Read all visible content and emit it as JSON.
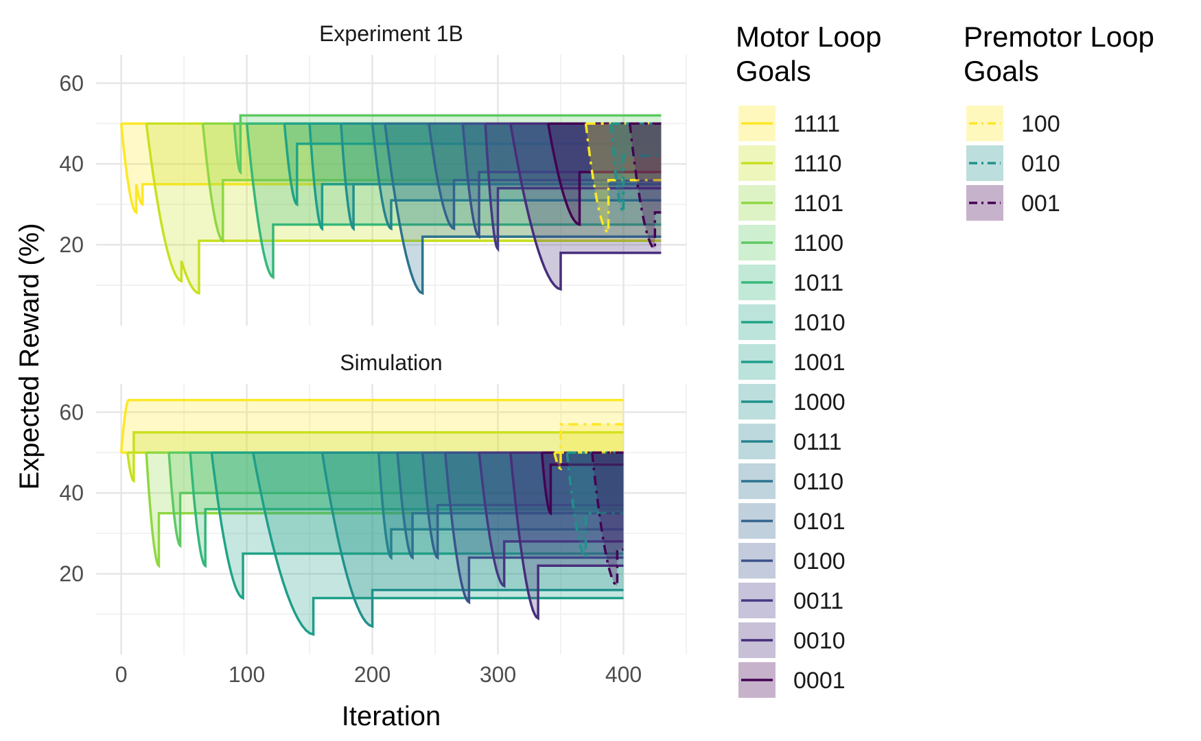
{
  "chart_data": {
    "type": "line",
    "ylabel": "Expected Reward (%)",
    "xlabel": "Iteration",
    "grid": true,
    "legend_placement": "right",
    "x_ticks": [
      0,
      100,
      200,
      300,
      400
    ],
    "y_ticks": [
      20,
      40,
      60
    ],
    "panels": [
      {
        "title": "Experiment 1B",
        "xlim": [
          -20,
          450
        ],
        "ylim": [
          0,
          67
        ],
        "motor_series": [
          {
            "goal": "1111",
            "base": 50,
            "start": 0,
            "end": 430,
            "drops": [
              [
                0,
                50
              ],
              [
                12,
                28,
                35
              ],
              [
                17,
                30,
                35
              ],
              [
                25,
                35,
                35
              ]
            ]
          },
          {
            "goal": "1110",
            "base": 50,
            "start": 20,
            "end": 430,
            "drops": [
              [
                20,
                50
              ],
              [
                48,
                11,
                16
              ],
              [
                62,
                8,
                21
              ]
            ]
          },
          {
            "goal": "1101",
            "base": 50,
            "start": 65,
            "end": 430,
            "drops": [
              [
                65,
                50
              ],
              [
                81,
                21,
                36
              ],
              [
                86,
                36,
                36
              ]
            ]
          },
          {
            "goal": "1100",
            "base": 50,
            "start": 90,
            "end": 430,
            "drops": [
              [
                90,
                50
              ],
              [
                95,
                38,
                52
              ]
            ]
          },
          {
            "goal": "1011",
            "base": 50,
            "start": 100,
            "end": 430,
            "drops": [
              [
                100,
                50
              ],
              [
                121,
                12,
                25
              ]
            ]
          },
          {
            "goal": "1010",
            "base": 50,
            "start": 130,
            "end": 430,
            "drops": [
              [
                130,
                50
              ],
              [
                140,
                30,
                45
              ]
            ]
          },
          {
            "goal": "1001",
            "base": 50,
            "start": 150,
            "end": 430,
            "drops": [
              [
                150,
                50
              ],
              [
                160,
                24,
                35
              ]
            ]
          },
          {
            "goal": "1000",
            "base": 50,
            "start": 175,
            "end": 430,
            "drops": [
              [
                175,
                50
              ],
              [
                185,
                24,
                35
              ]
            ]
          },
          {
            "goal": "0111",
            "base": 50,
            "start": 200,
            "end": 430,
            "drops": [
              [
                200,
                50
              ],
              [
                215,
                24,
                31
              ]
            ]
          },
          {
            "goal": "0110",
            "base": 50,
            "start": 210,
            "end": 430,
            "drops": [
              [
                210,
                50
              ],
              [
                240,
                8,
                22
              ]
            ]
          },
          {
            "goal": "0101",
            "base": 50,
            "start": 245,
            "end": 430,
            "drops": [
              [
                245,
                50
              ],
              [
                265,
                24,
                36
              ]
            ]
          },
          {
            "goal": "0100",
            "base": 50,
            "start": 272,
            "end": 430,
            "drops": [
              [
                272,
                50
              ],
              [
                285,
                22,
                38
              ]
            ]
          },
          {
            "goal": "0011",
            "base": 50,
            "start": 290,
            "end": 430,
            "drops": [
              [
                290,
                50
              ],
              [
                300,
                19,
                34
              ]
            ]
          },
          {
            "goal": "0010",
            "base": 50,
            "start": 310,
            "end": 430,
            "drops": [
              [
                310,
                50
              ],
              [
                350,
                9,
                18
              ]
            ]
          },
          {
            "goal": "0001",
            "base": 50,
            "start": 340,
            "end": 430,
            "drops": [
              [
                340,
                50
              ],
              [
                365,
                25,
                38
              ]
            ]
          }
        ],
        "premotor_series": [
          {
            "goal": "100",
            "base": 50,
            "start": 370,
            "end": 430,
            "drops": [
              [
                370,
                50
              ],
              [
                388,
                23,
                36
              ]
            ]
          },
          {
            "goal": "010",
            "base": 50,
            "start": 390,
            "end": 430,
            "drops": [
              [
                390,
                50
              ],
              [
                400,
                28,
                42
              ]
            ]
          },
          {
            "goal": "001",
            "base": 50,
            "start": 405,
            "end": 430,
            "drops": [
              [
                405,
                50
              ],
              [
                425,
                19,
                28
              ]
            ]
          }
        ]
      },
      {
        "title": "Simulation",
        "xlim": [
          -20,
          450
        ],
        "ylim": [
          0,
          67
        ],
        "motor_series": [
          {
            "goal": "1111",
            "base": 50,
            "start": 0,
            "end": 400,
            "drops": [
              [
                0,
                50
              ],
              [
                6,
                63,
                63
              ]
            ]
          },
          {
            "goal": "1110",
            "base": 50,
            "start": 5,
            "end": 400,
            "drops": [
              [
                5,
                50
              ],
              [
                10,
                43,
                55
              ]
            ]
          },
          {
            "goal": "1101",
            "base": 50,
            "start": 20,
            "end": 400,
            "drops": [
              [
                20,
                50
              ],
              [
                30,
                22,
                35
              ]
            ]
          },
          {
            "goal": "1100",
            "base": 50,
            "start": 38,
            "end": 400,
            "drops": [
              [
                38,
                50
              ],
              [
                47,
                27,
                40
              ]
            ]
          },
          {
            "goal": "1011",
            "base": 50,
            "start": 55,
            "end": 400,
            "drops": [
              [
                55,
                50
              ],
              [
                67,
                22,
                36
              ]
            ]
          },
          {
            "goal": "1010",
            "base": 50,
            "start": 72,
            "end": 400,
            "drops": [
              [
                72,
                50
              ],
              [
                97,
                14,
                25
              ]
            ]
          },
          {
            "goal": "1001",
            "base": 50,
            "start": 105,
            "end": 400,
            "drops": [
              [
                105,
                50
              ],
              [
                153,
                5,
                14
              ]
            ]
          },
          {
            "goal": "1000",
            "base": 50,
            "start": 160,
            "end": 400,
            "drops": [
              [
                160,
                50
              ],
              [
                200,
                7,
                16
              ]
            ]
          },
          {
            "goal": "0111",
            "base": 50,
            "start": 205,
            "end": 400,
            "drops": [
              [
                205,
                50
              ],
              [
                215,
                24,
                31
              ]
            ]
          },
          {
            "goal": "0110",
            "base": 50,
            "start": 220,
            "end": 400,
            "drops": [
              [
                220,
                50
              ],
              [
                232,
                24,
                35
              ]
            ]
          },
          {
            "goal": "0101",
            "base": 50,
            "start": 240,
            "end": 400,
            "drops": [
              [
                240,
                50
              ],
              [
                252,
                24,
                37
              ]
            ]
          },
          {
            "goal": "0100",
            "base": 50,
            "start": 258,
            "end": 400,
            "drops": [
              [
                258,
                50
              ],
              [
                277,
                13,
                24
              ]
            ]
          },
          {
            "goal": "0011",
            "base": 50,
            "start": 285,
            "end": 400,
            "drops": [
              [
                285,
                50
              ],
              [
                305,
                17,
                28
              ]
            ]
          },
          {
            "goal": "0010",
            "base": 50,
            "start": 310,
            "end": 400,
            "drops": [
              [
                310,
                50
              ],
              [
                332,
                9,
                22
              ]
            ]
          },
          {
            "goal": "0001",
            "base": 50,
            "start": 335,
            "end": 400,
            "drops": [
              [
                335,
                50
              ],
              [
                342,
                35,
                47
              ]
            ]
          }
        ],
        "premotor_series": [
          {
            "goal": "100",
            "base": 50,
            "start": 345,
            "end": 400,
            "drops": [
              [
                345,
                50
              ],
              [
                350,
                46,
                57
              ]
            ]
          },
          {
            "goal": "010",
            "base": 50,
            "start": 355,
            "end": 400,
            "drops": [
              [
                355,
                50
              ],
              [
                370,
                24,
                35
              ]
            ]
          },
          {
            "goal": "001",
            "base": 50,
            "start": 375,
            "end": 400,
            "drops": [
              [
                375,
                50
              ],
              [
                395,
                17,
                26
              ]
            ]
          }
        ]
      }
    ]
  },
  "legend": {
    "motor_title_line1": "Motor Loop",
    "motor_title_line2": "Goals",
    "motor_items": [
      {
        "label": "1111",
        "color": "#FDE725"
      },
      {
        "label": "1110",
        "color": "#C8E020"
      },
      {
        "label": "1101",
        "color": "#90D743"
      },
      {
        "label": "1100",
        "color": "#5EC962"
      },
      {
        "label": "1011",
        "color": "#35B779"
      },
      {
        "label": "1010",
        "color": "#20A486"
      },
      {
        "label": "1001",
        "color": "#1F9E89"
      },
      {
        "label": "1000",
        "color": "#21918C"
      },
      {
        "label": "0111",
        "color": "#26828E"
      },
      {
        "label": "0110",
        "color": "#2C728E"
      },
      {
        "label": "0101",
        "color": "#33638D"
      },
      {
        "label": "0100",
        "color": "#3B528B"
      },
      {
        "label": "0011",
        "color": "#443983"
      },
      {
        "label": "0010",
        "color": "#472D7B"
      },
      {
        "label": "0001",
        "color": "#440154"
      }
    ],
    "premotor_title_line1": "Premotor Loop",
    "premotor_title_line2": "Goals",
    "premotor_items": [
      {
        "label": "100",
        "color": "#FDE725"
      },
      {
        "label": "010",
        "color": "#21918C"
      },
      {
        "label": "001",
        "color": "#440154"
      }
    ]
  }
}
